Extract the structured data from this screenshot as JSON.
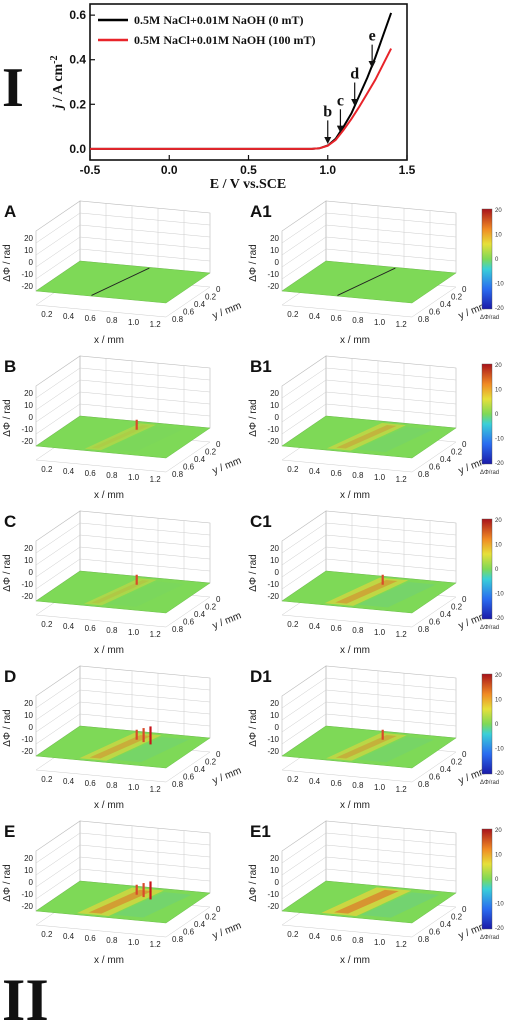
{
  "figure": {
    "roman_top": "I",
    "roman_bottom": "II"
  },
  "chart_data": [
    {
      "type": "line",
      "panel": "I",
      "xlabel": "E / V vs.SCE",
      "ylabel_italic": "j",
      "ylabel_rest": " / A cm",
      "ylabel_sup": "-2",
      "xlim": [
        -0.5,
        1.5
      ],
      "ylim": [
        -0.05,
        0.65
      ],
      "xticks": [
        "-0.5",
        "0.0",
        "0.5",
        "1.0",
        "1.5"
      ],
      "yticks": [
        "0.0",
        "0.2",
        "0.4",
        "0.6"
      ],
      "legend_position": "top-left",
      "series": [
        {
          "name": "0.5M NaCl+0.01M NaOH (0 mT)",
          "color": "#000000",
          "x": [
            -0.5,
            0.0,
            0.5,
            0.9,
            0.95,
            1.0,
            1.05,
            1.1,
            1.15,
            1.2,
            1.25,
            1.3,
            1.35,
            1.4
          ],
          "y": [
            0.0,
            0.0,
            0.0,
            0.0,
            0.003,
            0.015,
            0.045,
            0.1,
            0.16,
            0.24,
            0.32,
            0.41,
            0.51,
            0.61
          ]
        },
        {
          "name": "0.5M NaCl+0.01M NaOH (100 mT)",
          "color": "#e8242a",
          "x": [
            -0.5,
            0.0,
            0.5,
            0.9,
            0.95,
            1.0,
            1.05,
            1.1,
            1.15,
            1.2,
            1.25,
            1.3,
            1.35,
            1.4
          ],
          "y": [
            0.0,
            0.0,
            0.0,
            0.0,
            0.003,
            0.014,
            0.04,
            0.085,
            0.135,
            0.19,
            0.25,
            0.31,
            0.38,
            0.45
          ]
        }
      ],
      "annotations": [
        {
          "text": "b",
          "x": 1.0,
          "y": 0.02
        },
        {
          "text": "c",
          "x": 1.08,
          "y": 0.07
        },
        {
          "text": "d",
          "x": 1.17,
          "y": 0.19
        },
        {
          "text": "e",
          "x": 1.28,
          "y": 0.36
        }
      ]
    },
    {
      "type": "heatmap",
      "panel": "II",
      "xlabel": "x / mm",
      "ylabel": "y / mm",
      "zlabel": "ΔΦ / rad",
      "xticks": [
        "0.2",
        "0.4",
        "0.6",
        "0.8",
        "1.0",
        "1.2"
      ],
      "yticks": [
        "0",
        "0.2",
        "0.4",
        "0.6",
        "0.8"
      ],
      "zticks": [
        "20",
        "10",
        "0",
        "-10",
        "-20"
      ],
      "colorbar_ticks": [
        "20",
        "10",
        "0",
        "-10",
        "-20"
      ],
      "colorbar_label": "ΔΦ/rad",
      "clim": [
        -20,
        20
      ],
      "colors": {
        "plane": "#7ed957",
        "warm": "#e8d53a",
        "hot": "#e83a1a",
        "cool": "#5ec9a0"
      },
      "rows": [
        {
          "left": "A",
          "right": "A1",
          "left_intensity": 0.0,
          "right_intensity": 0.0,
          "left_spikes": 0,
          "right_spikes": 0
        },
        {
          "left": "B",
          "right": "B1",
          "left_intensity": 0.1,
          "right_intensity": 0.35,
          "left_spikes": 1,
          "right_spikes": 0
        },
        {
          "left": "C",
          "right": "C1",
          "left_intensity": 0.15,
          "right_intensity": 0.5,
          "left_spikes": 1,
          "right_spikes": 1
        },
        {
          "left": "D",
          "right": "D1",
          "left_intensity": 0.45,
          "right_intensity": 0.4,
          "left_spikes": 3,
          "right_spikes": 1
        },
        {
          "left": "E",
          "right": "E1",
          "left_intensity": 0.6,
          "right_intensity": 0.7,
          "left_spikes": 3,
          "right_spikes": 0
        }
      ]
    }
  ]
}
